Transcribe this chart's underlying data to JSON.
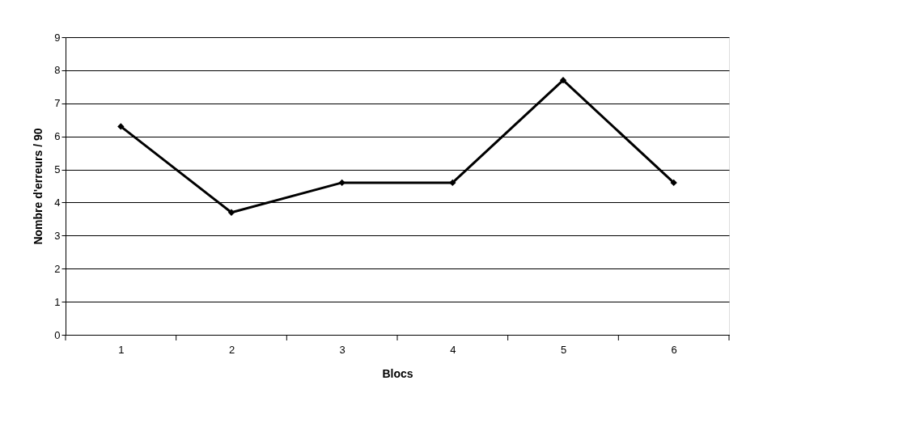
{
  "chart_data": {
    "type": "line",
    "xlabel": "Blocs",
    "ylabel": "Nombre d'erreurs / 90",
    "categories": [
      "1",
      "2",
      "3",
      "4",
      "5",
      "6"
    ],
    "series": [
      {
        "color": "#000000",
        "values": [
          6.3,
          3.7,
          4.6,
          4.6,
          7.7,
          4.6
        ]
      }
    ],
    "ylim": [
      0,
      9
    ],
    "yticks": [
      0,
      1,
      2,
      3,
      4,
      5,
      6,
      7,
      8,
      9
    ],
    "grid": "y",
    "marker": "diamond",
    "line_style": "solid"
  }
}
